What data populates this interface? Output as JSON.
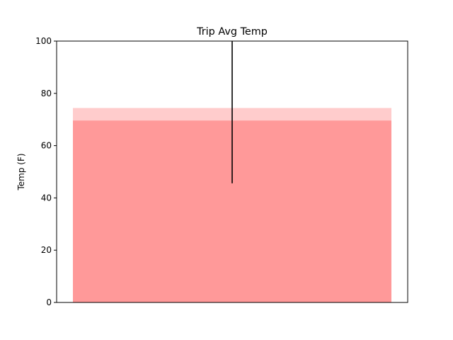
{
  "chart_data": {
    "type": "bar",
    "title": "Trip Avg Temp",
    "xlabel": "",
    "ylabel": "Temp (F)",
    "ylim": [
      0,
      100
    ],
    "yticks": [
      0,
      20,
      40,
      60,
      80,
      100
    ],
    "ytick_labels": [
      "0",
      "20",
      "40",
      "60",
      "80",
      "100"
    ],
    "grid": false,
    "bar": {
      "value": 69.6,
      "error_bar": [
        45.6,
        100
      ],
      "color": "#ff9999"
    },
    "background_band": {
      "value": 74.4,
      "color": "#ffcccc"
    },
    "axes_color": "#000000",
    "error_bar_color": "#000000"
  }
}
